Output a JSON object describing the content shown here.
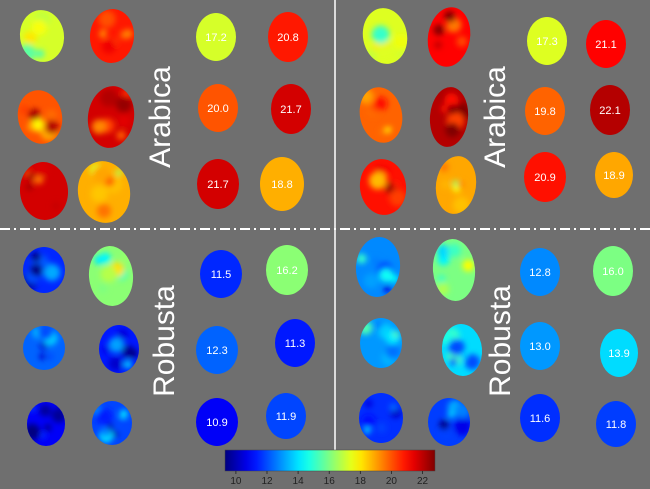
{
  "panels": [
    {
      "id": "top-left",
      "label": "Arabica",
      "maps": [
        {
          "mean": 17.2
        },
        {
          "mean": 20.8
        },
        {
          "mean": 20.0
        },
        {
          "mean": 21.7
        },
        {
          "mean": 21.7
        },
        {
          "mean": 18.8
        }
      ],
      "values": [
        "17.2",
        "20.8",
        "20.0",
        "21.7",
        "21.7",
        "18.8"
      ]
    },
    {
      "id": "top-right",
      "label": "Arabica",
      "maps": [
        {
          "mean": 17.3
        },
        {
          "mean": 21.1
        },
        {
          "mean": 19.8
        },
        {
          "mean": 22.1
        },
        {
          "mean": 20.9
        },
        {
          "mean": 18.9
        }
      ],
      "values": [
        "17.3",
        "21.1",
        "19.8",
        "22.1",
        "20.9",
        "18.9"
      ]
    },
    {
      "id": "bottom-left",
      "label": "Robusta",
      "maps": [
        {
          "mean": 11.5
        },
        {
          "mean": 16.2
        },
        {
          "mean": 12.3
        },
        {
          "mean": 11.3
        },
        {
          "mean": 10.9
        },
        {
          "mean": 11.9
        }
      ],
      "values": [
        "11.5",
        "16.2",
        "12.3",
        "11.3",
        "10.9",
        "11.9"
      ]
    },
    {
      "id": "bottom-right",
      "label": "Robusta",
      "maps": [
        {
          "mean": 12.8
        },
        {
          "mean": 16.0
        },
        {
          "mean": 13.0
        },
        {
          "mean": 13.9
        },
        {
          "mean": 11.6
        },
        {
          "mean": 11.8
        }
      ],
      "values": [
        "12.8",
        "16.0",
        "13.0",
        "13.9",
        "11.6",
        "11.8"
      ]
    }
  ],
  "colorbar": {
    "ticks": [
      "10",
      "12",
      "14",
      "16",
      "18",
      "20",
      "22"
    ],
    "tick_values": [
      10,
      12,
      14,
      16,
      18,
      20,
      22
    ],
    "min": 9.3,
    "max": 22.8
  },
  "colors": {
    "background": "#6f6f6f",
    "divider": "#ffffff",
    "label": "#ffffff"
  }
}
